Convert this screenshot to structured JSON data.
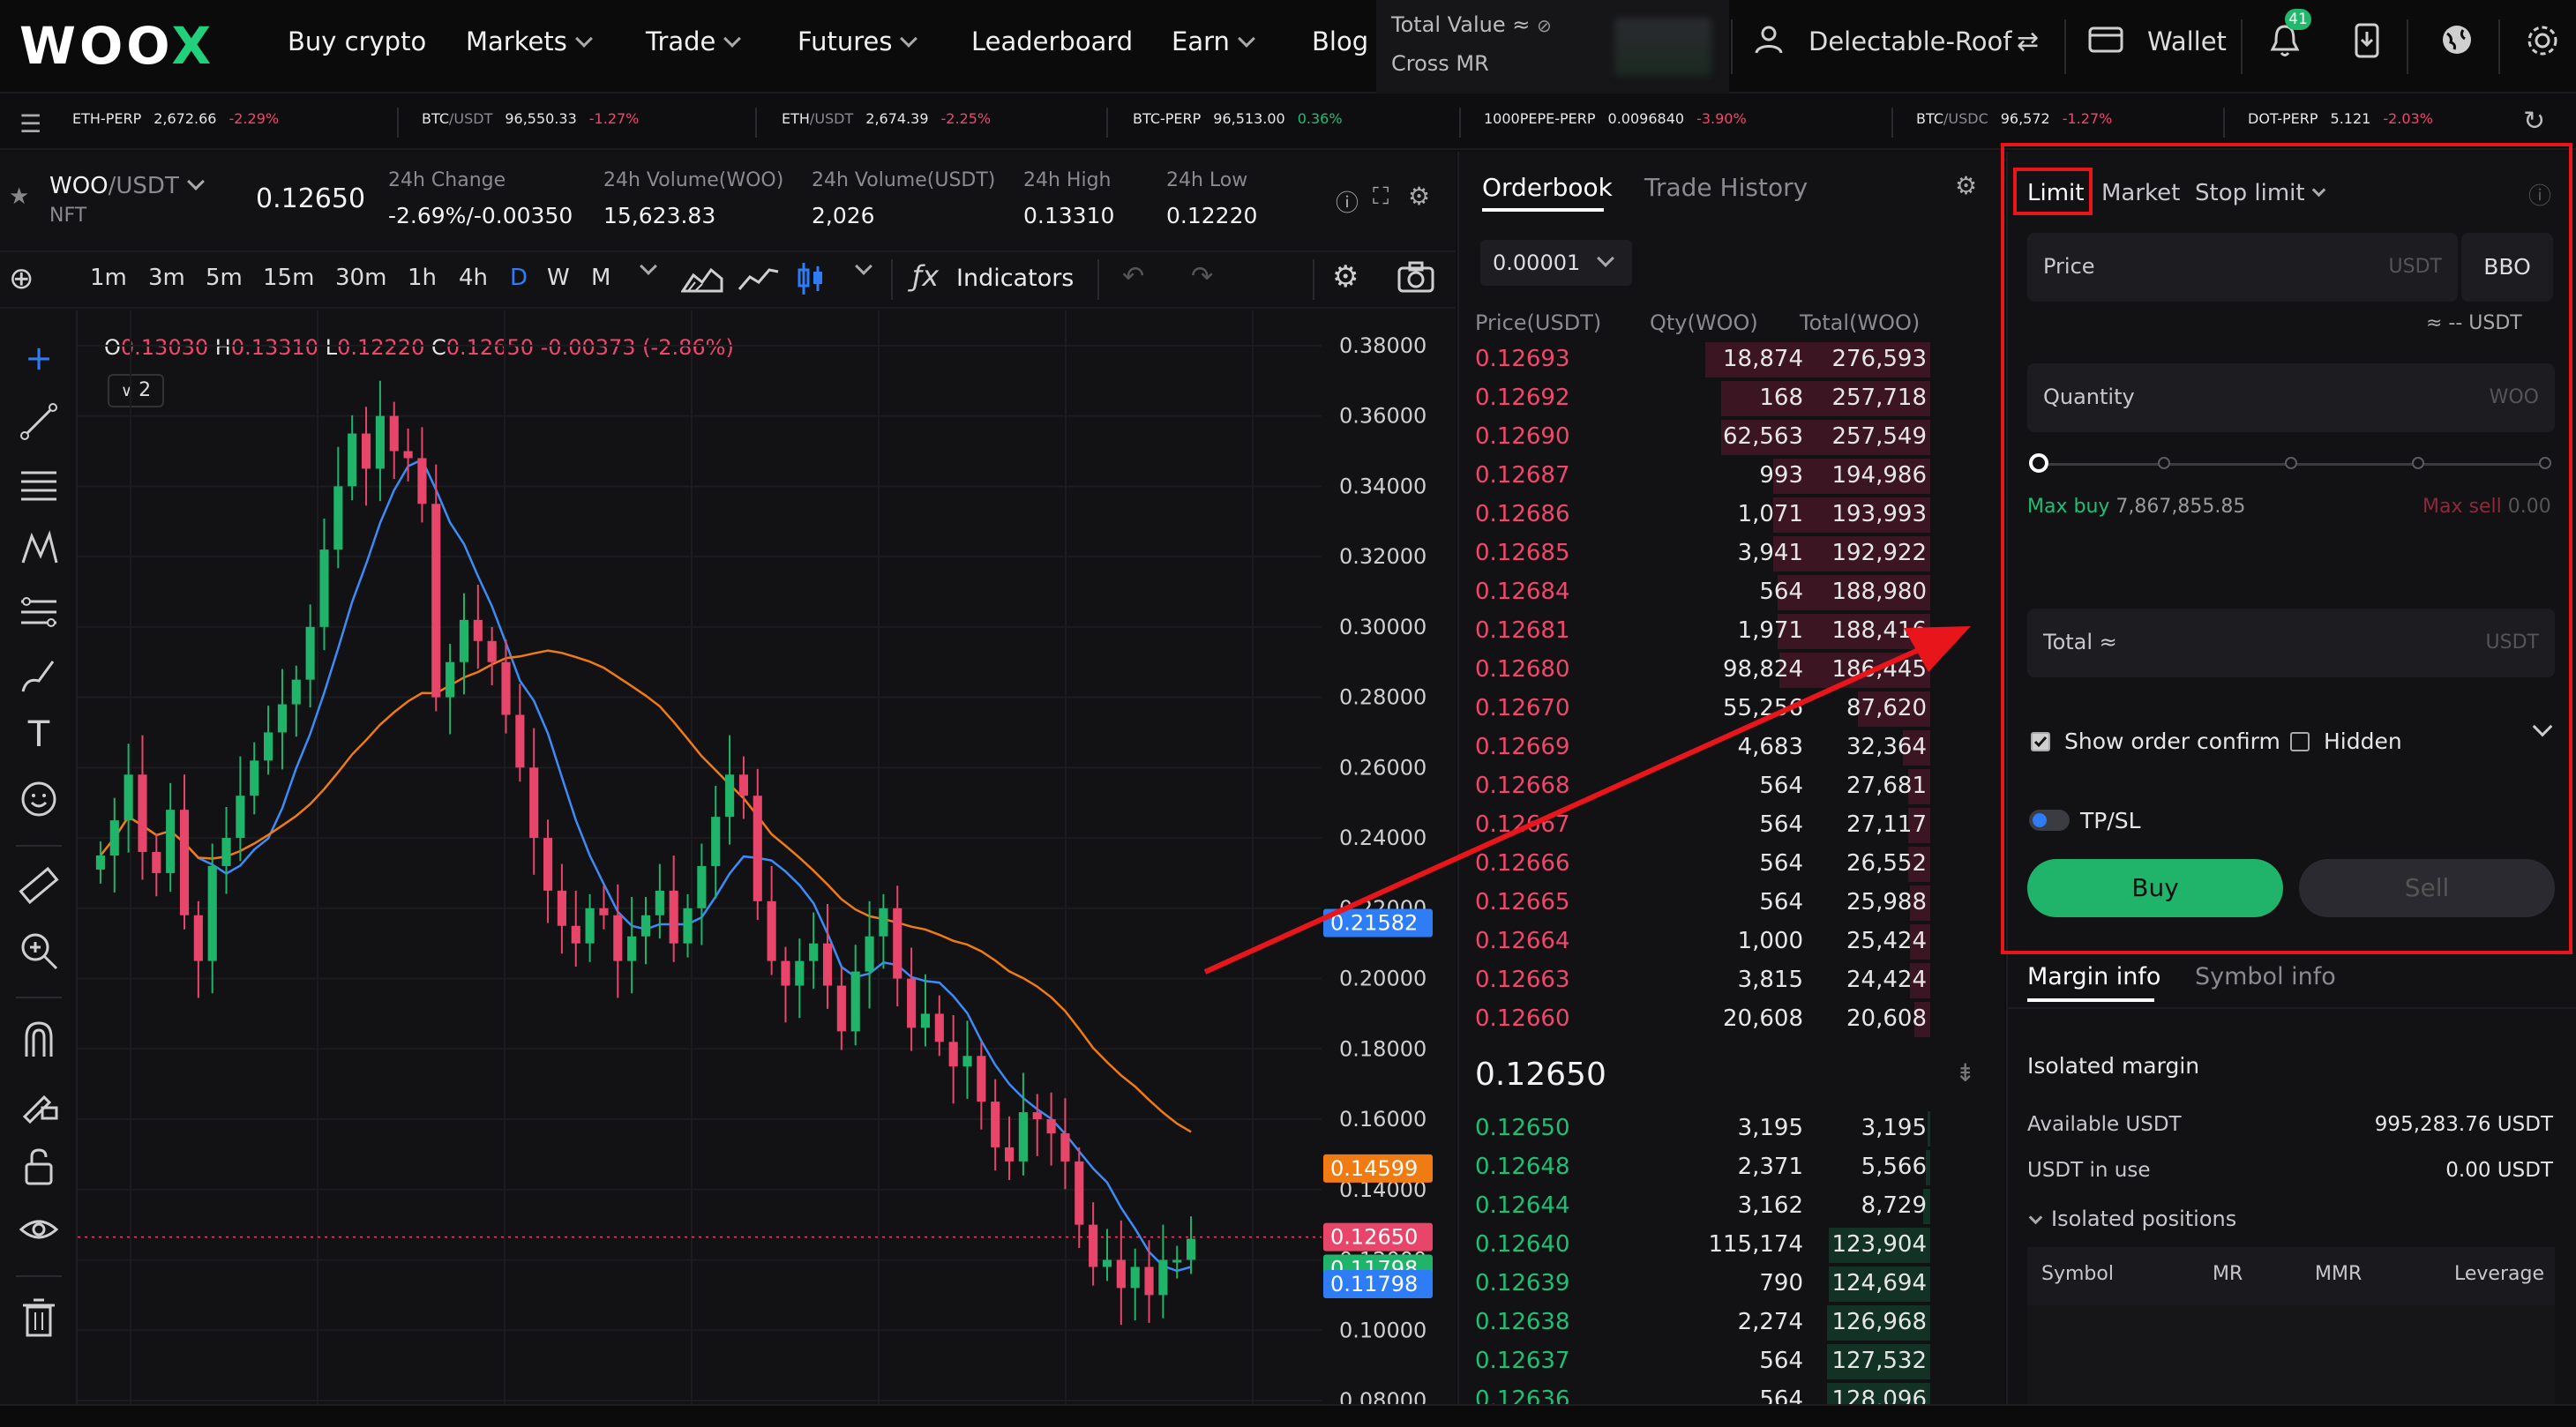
{
  "nav": {
    "logo": "WOOX",
    "items": [
      "Buy crypto",
      "Markets",
      "Trade",
      "Futures",
      "Leaderboard",
      "Earn",
      "Blog"
    ],
    "total_value_label": "Total Value ≈",
    "cross_mr_label": "Cross MR",
    "user": "Delectable-Roof",
    "wallet": "Wallet",
    "notification_count": "41"
  },
  "ticker": [
    {
      "base": "ETH-PERP",
      "quote": "",
      "price": "2,672.66",
      "change": "-2.29%",
      "dir": "down"
    },
    {
      "base": "BTC",
      "quote": "/USDT",
      "price": "96,550.33",
      "change": "-1.27%",
      "dir": "down"
    },
    {
      "base": "ETH",
      "quote": "/USDT",
      "price": "2,674.39",
      "change": "-2.25%",
      "dir": "down"
    },
    {
      "base": "BTC-PERP",
      "quote": "",
      "price": "96,513.00",
      "change": "0.36%",
      "dir": "up"
    },
    {
      "base": "1000PEPE-PERP",
      "quote": "",
      "price": "0.0096840",
      "change": "-3.90%",
      "dir": "down"
    },
    {
      "base": "BTC",
      "quote": "/USDC",
      "price": "96,572",
      "change": "-1.27%",
      "dir": "down"
    },
    {
      "base": "DOT-PERP",
      "quote": "",
      "price": "5.121",
      "change": "-2.03%",
      "dir": "down"
    }
  ],
  "symbol": {
    "base": "WOO",
    "quote": "/USDT",
    "sub": "NFT",
    "last": "0.12650",
    "stats": [
      {
        "label": "24h Change",
        "value": "-2.69%/-0.00350",
        "dir": "down"
      },
      {
        "label": "24h Volume(WOO)",
        "value": "15,623.83",
        "dir": "none"
      },
      {
        "label": "24h Volume(USDT)",
        "value": "2,026",
        "dir": "none"
      },
      {
        "label": "24h High",
        "value": "0.13310",
        "dir": "none"
      },
      {
        "label": "24h Low",
        "value": "0.12220",
        "dir": "none"
      }
    ]
  },
  "toolbar": {
    "timeframes": [
      "1m",
      "3m",
      "5m",
      "15m",
      "30m",
      "1h",
      "4h",
      "D",
      "W",
      "M"
    ],
    "active": "D",
    "indicators": "Indicators",
    "indicator_count": "2"
  },
  "ohlc": {
    "o": "0.13030",
    "h": "0.13310",
    "l": "0.12220",
    "c": "0.12650",
    "chg": "-0.00373 (-2.86%)"
  },
  "chart_data": {
    "type": "candlestick",
    "yticks": [
      "0.38000",
      "0.36000",
      "0.34000",
      "0.32000",
      "0.30000",
      "0.28000",
      "0.26000",
      "0.24000",
      "0.22000",
      "0.20000",
      "0.18000",
      "0.16000",
      "0.14000",
      "0.12000",
      "0.10000",
      "0.08000"
    ],
    "ylim": [
      0.08,
      0.39
    ],
    "price_tags": [
      {
        "value": "0.21582",
        "color": "#2e7cf6"
      },
      {
        "value": "0.14599",
        "color": "#f07b12"
      },
      {
        "value": "0.12650",
        "color": "#e8456b"
      },
      {
        "value": "0.11798",
        "color": "#1fb46a"
      },
      {
        "value": "0.11798",
        "color": "#2e7cf6"
      }
    ],
    "closes": [
      0.235,
      0.245,
      0.258,
      0.236,
      0.23,
      0.248,
      0.218,
      0.205,
      0.232,
      0.24,
      0.252,
      0.262,
      0.27,
      0.278,
      0.285,
      0.3,
      0.322,
      0.34,
      0.355,
      0.345,
      0.36,
      0.35,
      0.348,
      0.335,
      0.28,
      0.29,
      0.302,
      0.296,
      0.29,
      0.275,
      0.26,
      0.24,
      0.225,
      0.215,
      0.21,
      0.22,
      0.218,
      0.205,
      0.212,
      0.218,
      0.225,
      0.21,
      0.22,
      0.232,
      0.246,
      0.258,
      0.252,
      0.222,
      0.205,
      0.198,
      0.205,
      0.21,
      0.198,
      0.185,
      0.202,
      0.212,
      0.22,
      0.2,
      0.186,
      0.19,
      0.182,
      0.175,
      0.178,
      0.165,
      0.152,
      0.148,
      0.162,
      0.16,
      0.156,
      0.148,
      0.13,
      0.118,
      0.12,
      0.112,
      0.118,
      0.11,
      0.12,
      0.12,
      0.126
    ]
  },
  "orderbook": {
    "tab_active": "Orderbook",
    "tab_other": "Trade History",
    "tick_size": "0.00001",
    "headers": [
      "Price(USDT)",
      "Qty(WOO)",
      "Total(WOO)"
    ],
    "asks": [
      {
        "p": "0.12693",
        "q": "18,874",
        "t": "276,593",
        "w": 100
      },
      {
        "p": "0.12692",
        "q": "168",
        "t": "257,718",
        "w": 93
      },
      {
        "p": "0.12690",
        "q": "62,563",
        "t": "257,549",
        "w": 93
      },
      {
        "p": "0.12687",
        "q": "993",
        "t": "194,986",
        "w": 70
      },
      {
        "p": "0.12686",
        "q": "1,071",
        "t": "193,993",
        "w": 70
      },
      {
        "p": "0.12685",
        "q": "3,941",
        "t": "192,922",
        "w": 70
      },
      {
        "p": "0.12684",
        "q": "564",
        "t": "188,980",
        "w": 68
      },
      {
        "p": "0.12681",
        "q": "1,971",
        "t": "188,416",
        "w": 68
      },
      {
        "p": "0.12680",
        "q": "98,824",
        "t": "186,445",
        "w": 67
      },
      {
        "p": "0.12670",
        "q": "55,256",
        "t": "87,620",
        "w": 32
      },
      {
        "p": "0.12669",
        "q": "4,683",
        "t": "32,364",
        "w": 12
      },
      {
        "p": "0.12668",
        "q": "564",
        "t": "27,681",
        "w": 10
      },
      {
        "p": "0.12667",
        "q": "564",
        "t": "27,117",
        "w": 10
      },
      {
        "p": "0.12666",
        "q": "564",
        "t": "26,552",
        "w": 10
      },
      {
        "p": "0.12665",
        "q": "564",
        "t": "25,988",
        "w": 9
      },
      {
        "p": "0.12664",
        "q": "1,000",
        "t": "25,424",
        "w": 9
      },
      {
        "p": "0.12663",
        "q": "3,815",
        "t": "24,424",
        "w": 9
      },
      {
        "p": "0.12660",
        "q": "20,608",
        "t": "20,608",
        "w": 7
      }
    ],
    "last": "0.12650",
    "bids": [
      {
        "p": "0.12650",
        "q": "3,195",
        "t": "3,195",
        "w": 1
      },
      {
        "p": "0.12648",
        "q": "2,371",
        "t": "5,566",
        "w": 2
      },
      {
        "p": "0.12644",
        "q": "3,162",
        "t": "8,729",
        "w": 3
      },
      {
        "p": "0.12640",
        "q": "115,174",
        "t": "123,904",
        "w": 45
      },
      {
        "p": "0.12639",
        "q": "790",
        "t": "124,694",
        "w": 45
      },
      {
        "p": "0.12638",
        "q": "2,274",
        "t": "126,968",
        "w": 46
      },
      {
        "p": "0.12637",
        "q": "564",
        "t": "127,532",
        "w": 46
      },
      {
        "p": "0.12636",
        "q": "564",
        "t": "128,096",
        "w": 46
      }
    ]
  },
  "order": {
    "tabs": [
      "Limit",
      "Market",
      "Stop limit"
    ],
    "price_label": "Price",
    "unit": "USDT",
    "bbo": "BBO",
    "approx": "≈ -- USDT",
    "qty_label": "Quantity",
    "qty_unit": "WOO",
    "max_buy_label": "Max buy",
    "max_buy": "7,867,855.85",
    "max_sell_label": "Max sell",
    "max_sell": "0.00",
    "total_label": "Total ≈",
    "show_confirm": "Show order confirm",
    "hidden": "Hidden",
    "tpsl": "TP/SL",
    "buy": "Buy",
    "sell": "Sell"
  },
  "margin": {
    "tabs": [
      "Margin info",
      "Symbol info"
    ],
    "title": "Isolated margin",
    "available_label": "Available USDT",
    "available": "995,283.76 USDT",
    "inuse_label": "USDT in use",
    "inuse": "0.00 USDT",
    "positions": "Isolated positions",
    "cols": [
      "Symbol",
      "MR",
      "MMR",
      "Leverage"
    ]
  },
  "colors": {
    "accent_green": "#1fb46a",
    "accent_red": "#f0476c",
    "annotation_red": "#e8151b",
    "blue": "#2e7cf6"
  }
}
